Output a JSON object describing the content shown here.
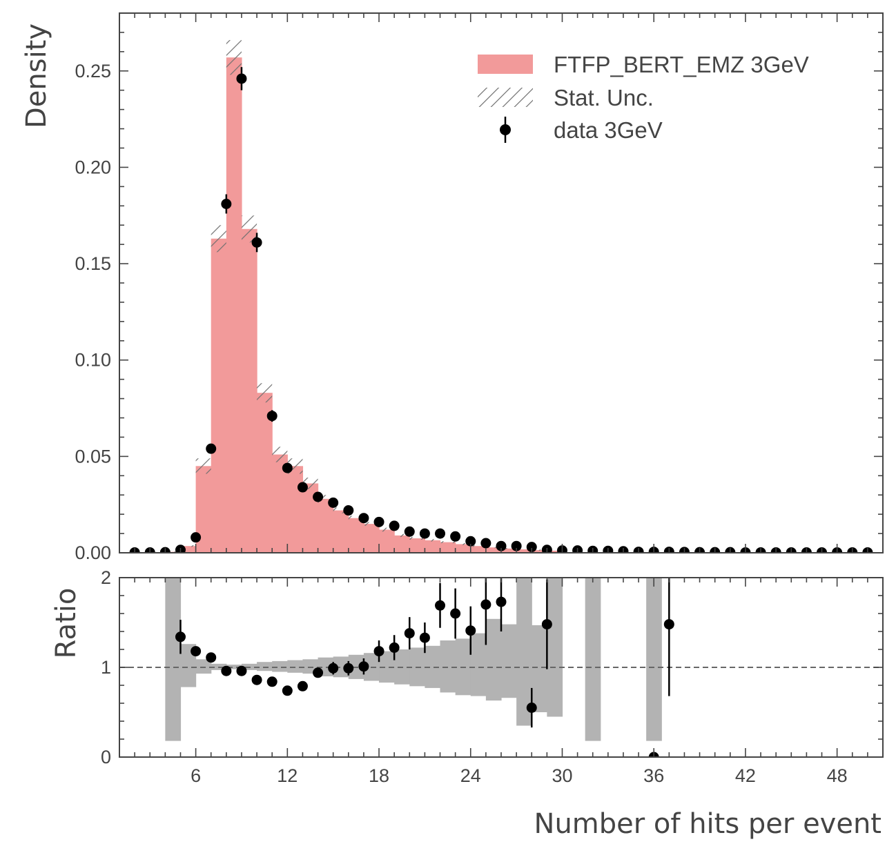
{
  "chart_data": [
    {
      "type": "histogram",
      "ylabel": "Density",
      "xlim": [
        1,
        51
      ],
      "ylim": [
        0,
        0.28
      ],
      "yticks": [
        "0.00",
        "0.05",
        "0.10",
        "0.15",
        "0.20",
        "0.25"
      ],
      "bin_edges": [
        4,
        5,
        6,
        7,
        8,
        9,
        10,
        11,
        12,
        13,
        14,
        15,
        16,
        17,
        18,
        19,
        20,
        21,
        22,
        23,
        24,
        25,
        26,
        27,
        28,
        29,
        30
      ],
      "legend": {
        "position": "top-right",
        "entries": [
          "FTFP_BERT_EMZ 3GeV",
          "Stat. Unc.",
          "data 3GeV"
        ]
      },
      "series": [
        {
          "name": "FTFP_BERT_EMZ 3GeV",
          "kind": "filled-histogram",
          "color": "#f29a9a",
          "values": [
            0.0005,
            0.0035,
            0.045,
            0.163,
            0.257,
            0.168,
            0.083,
            0.051,
            0.045,
            0.036,
            0.028,
            0.022,
            0.018,
            0.015,
            0.012,
            0.009,
            0.0075,
            0.0065,
            0.0055,
            0.0045,
            0.0035,
            0.0028,
            0.0022,
            0.0018,
            0.0014,
            0.0011
          ]
        },
        {
          "name": "Stat. Unc.",
          "kind": "hatched-band",
          "color": "#777777",
          "values": [
            0.0002,
            0.0004,
            0.004,
            0.007,
            0.009,
            0.007,
            0.005,
            0.004,
            0.004,
            0.003,
            0.002,
            0.0015,
            0.0012,
            0.001,
            0.001,
            0.0008,
            0.0007,
            0.0006,
            0.0005,
            0.0005,
            0.0004,
            0.0004,
            0.0003,
            0.0003,
            0.0003,
            0.0003
          ]
        },
        {
          "name": "data 3GeV",
          "kind": "points-with-errors",
          "color": "#000000",
          "x": [
            2,
            3,
            4,
            5,
            6,
            7,
            8,
            9,
            10,
            11,
            12,
            13,
            14,
            15,
            16,
            17,
            18,
            19,
            20,
            21,
            22,
            23,
            24,
            25,
            26,
            27,
            28,
            29,
            30,
            31,
            32,
            33,
            34,
            35,
            36,
            37,
            38,
            39,
            40,
            41,
            42,
            43,
            44,
            45,
            46,
            47,
            48,
            49,
            50
          ],
          "values": [
            0.0002,
            0.0002,
            0.0003,
            0.0015,
            0.008,
            0.054,
            0.181,
            0.246,
            0.161,
            0.071,
            0.044,
            0.034,
            0.029,
            0.026,
            0.022,
            0.018,
            0.016,
            0.014,
            0.011,
            0.01,
            0.01,
            0.0085,
            0.006,
            0.005,
            0.0035,
            0.0035,
            0.003,
            0.0015,
            0.0012,
            0.0012,
            0.001,
            0.001,
            0.0008,
            0.0005,
            0.0005,
            0.0005,
            0.0004,
            0.0003,
            0.0003,
            0.0003,
            0.0002,
            0.0002,
            0.0002,
            0.0002,
            0.0002,
            0.0002,
            0.0002,
            0.0002,
            0.0002
          ],
          "errors": [
            0.0001,
            0.0001,
            0.0001,
            0.0005,
            0.001,
            0.002,
            0.005,
            0.006,
            0.005,
            0.003,
            0.002,
            0.002,
            0.0015,
            0.0015,
            0.001,
            0.001,
            0.001,
            0.001,
            0.001,
            0.001,
            0.001,
            0.0008,
            0.0006,
            0.0005,
            0.0004,
            0.0004,
            0.0004,
            0.0003,
            0.0003,
            0.0003,
            0.0002,
            0.0002,
            0.0002,
            0.0002,
            0.0002,
            0.0002,
            0.0002,
            0.0001,
            0.0001,
            0.0001,
            0.0001,
            0.0001,
            0.0001,
            0.0001,
            0.0001,
            0.0001,
            0.0001,
            0.0001,
            0.0001
          ]
        }
      ]
    },
    {
      "type": "ratio",
      "xlabel": "Number of hits per event",
      "ylabel": "Ratio",
      "xlim": [
        1,
        51
      ],
      "ylim": [
        0,
        2
      ],
      "xticks": [
        "6",
        "12",
        "18",
        "24",
        "30",
        "36",
        "42",
        "48"
      ],
      "yticks": [
        "0",
        "1",
        "2"
      ],
      "reference_line": 1,
      "uncertainty_band": {
        "color": "#b3b3b3",
        "bins": [
          {
            "lo": 4,
            "hi": 5,
            "low": 0.18,
            "high": 2.0
          },
          {
            "lo": 5,
            "hi": 6,
            "low": 0.78,
            "high": 1.26
          },
          {
            "lo": 6,
            "hi": 7,
            "low": 0.93,
            "high": 1.09
          },
          {
            "lo": 7,
            "hi": 8,
            "low": 0.97,
            "high": 1.04
          },
          {
            "lo": 8,
            "hi": 9,
            "low": 0.98,
            "high": 1.03
          },
          {
            "lo": 9,
            "hi": 10,
            "low": 0.97,
            "high": 1.04
          },
          {
            "lo": 10,
            "hi": 11,
            "low": 0.96,
            "high": 1.06
          },
          {
            "lo": 11,
            "hi": 12,
            "low": 0.95,
            "high": 1.07
          },
          {
            "lo": 12,
            "hi": 13,
            "low": 0.94,
            "high": 1.08
          },
          {
            "lo": 13,
            "hi": 14,
            "low": 0.93,
            "high": 1.09
          },
          {
            "lo": 14,
            "hi": 15,
            "low": 0.9,
            "high": 1.11
          },
          {
            "lo": 15,
            "hi": 16,
            "low": 0.89,
            "high": 1.12
          },
          {
            "lo": 16,
            "hi": 17,
            "low": 0.87,
            "high": 1.14
          },
          {
            "lo": 17,
            "hi": 18,
            "low": 0.85,
            "high": 1.16
          },
          {
            "lo": 18,
            "hi": 19,
            "low": 0.83,
            "high": 1.18
          },
          {
            "lo": 19,
            "hi": 20,
            "low": 0.81,
            "high": 1.2
          },
          {
            "lo": 20,
            "hi": 21,
            "low": 0.79,
            "high": 1.22
          },
          {
            "lo": 21,
            "hi": 22,
            "low": 0.77,
            "high": 1.24
          },
          {
            "lo": 22,
            "hi": 23,
            "low": 0.72,
            "high": 1.3
          },
          {
            "lo": 23,
            "hi": 24,
            "low": 0.69,
            "high": 1.32
          },
          {
            "lo": 24,
            "hi": 25,
            "low": 0.68,
            "high": 1.38
          },
          {
            "lo": 25,
            "hi": 26,
            "low": 0.63,
            "high": 1.54
          },
          {
            "lo": 26,
            "hi": 27,
            "low": 0.66,
            "high": 1.48
          },
          {
            "lo": 27,
            "hi": 28,
            "low": 0.35,
            "high": 2.0
          },
          {
            "lo": 28,
            "hi": 29,
            "low": 0.5,
            "high": 1.47
          },
          {
            "lo": 29,
            "hi": 30,
            "low": 0.45,
            "high": 2.0
          },
          {
            "lo": 31.5,
            "hi": 32.5,
            "low": 0.18,
            "high": 2.0
          },
          {
            "lo": 35.5,
            "hi": 36.5,
            "low": 0.18,
            "high": 2.0
          }
        ]
      },
      "series": [
        {
          "name": "data / FTFP_BERT_EMZ 3GeV",
          "kind": "points-with-errors",
          "color": "#000000",
          "x": [
            5,
            6,
            7,
            8,
            9,
            10,
            11,
            12,
            13,
            14,
            15,
            16,
            17,
            18,
            19,
            20,
            21,
            22,
            23,
            24,
            25,
            26,
            28,
            29,
            36,
            37
          ],
          "values": [
            1.34,
            1.18,
            1.11,
            0.96,
            0.96,
            0.86,
            0.84,
            0.74,
            0.79,
            0.94,
            0.99,
            0.99,
            1.01,
            1.18,
            1.22,
            1.38,
            1.33,
            1.69,
            1.6,
            1.41,
            1.7,
            1.73,
            0.55,
            1.48,
            0.0,
            1.48
          ],
          "errors": [
            0.19,
            0.04,
            0.03,
            0.03,
            0.03,
            0.03,
            0.04,
            0.04,
            0.04,
            0.05,
            0.07,
            0.08,
            0.09,
            0.12,
            0.14,
            0.18,
            0.17,
            0.25,
            0.28,
            0.27,
            0.45,
            0.33,
            0.22,
            0.5,
            0.02,
            0.8
          ]
        }
      ]
    }
  ]
}
